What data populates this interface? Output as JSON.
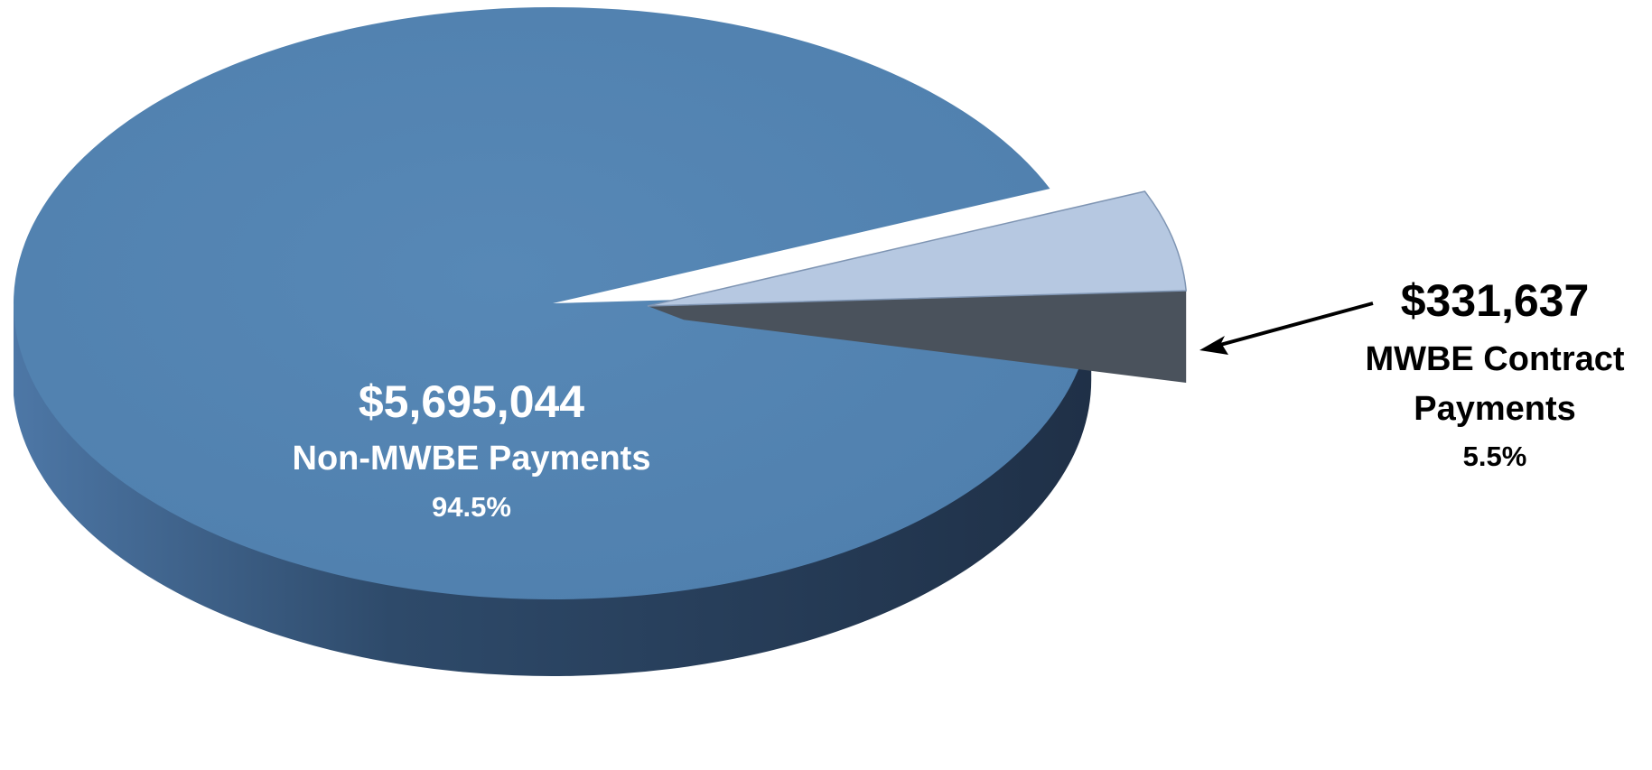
{
  "chart_data": {
    "type": "pie",
    "title": "",
    "slices": [
      {
        "label": "Non-MWBE Payments",
        "amount": "$5,695,044",
        "value": 5695044,
        "percent": "94.5%",
        "color": "#5585b3"
      },
      {
        "label": "MWBE Contract Payments",
        "label_lines": [
          "MWBE Contract",
          "Payments"
        ],
        "amount": "$331,637",
        "value": 331637,
        "percent": "5.5%",
        "color": "#b6c8e1"
      }
    ],
    "exploded_slice": "MWBE Contract Payments",
    "style": "3d"
  },
  "colors": {
    "top": "#5585b3",
    "side_dark": "#22344a",
    "side_light": "#4b72a0",
    "slice_top": "#b6c8e1",
    "slice_side": "#4a525c",
    "inner_label": "#ffffff",
    "outer_label": "#000000"
  }
}
